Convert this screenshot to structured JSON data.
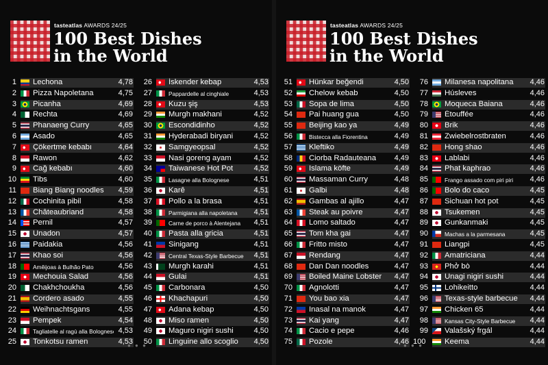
{
  "panels": [
    {
      "brand_a": "tasteatlas",
      "brand_b": "AWARDS 24/25",
      "title_line1": "100 Best Dishes",
      "title_line2": "in the World",
      "columns": [
        [
          {
            "rank": "1",
            "name": "Lechona",
            "score": "4,78",
            "flag": "co"
          },
          {
            "rank": "2",
            "name": "Pizza Napoletana",
            "score": "4,75",
            "flag": "it"
          },
          {
            "rank": "3",
            "name": "Picanha",
            "score": "4,69",
            "flag": "br"
          },
          {
            "rank": "4",
            "name": "Rechta",
            "score": "4,69",
            "flag": "dz"
          },
          {
            "rank": "5",
            "name": "Phanaeng Curry",
            "score": "4,65",
            "flag": "th"
          },
          {
            "rank": "6",
            "name": "Asado",
            "score": "4,65",
            "flag": "ar"
          },
          {
            "rank": "7",
            "name": "Çökertme kebabı",
            "score": "4,64",
            "flag": "tr"
          },
          {
            "rank": "8",
            "name": "Rawon",
            "score": "4,62",
            "flag": "id"
          },
          {
            "rank": "9",
            "name": "Cağ kebabı",
            "score": "4,60",
            "flag": "tr"
          },
          {
            "rank": "10",
            "name": "Tibs",
            "score": "4,60",
            "flag": "et"
          },
          {
            "rank": "11",
            "name": "Biang Biang noodles",
            "score": "4,59",
            "flag": "cn"
          },
          {
            "rank": "12",
            "name": "Cochinita pibil",
            "score": "4,58",
            "flag": "mx"
          },
          {
            "rank": "13",
            "name": "Châteaubriand",
            "score": "4,58",
            "flag": "fr"
          },
          {
            "rank": "14",
            "name": "Pernil",
            "score": "4,57",
            "flag": "pr"
          },
          {
            "rank": "15",
            "name": "Unadon",
            "score": "4,57",
            "flag": "jp"
          },
          {
            "rank": "16",
            "name": "Paidakia",
            "score": "4,56",
            "flag": "gr"
          },
          {
            "rank": "17",
            "name": "Khao soi",
            "score": "4,56",
            "flag": "th"
          },
          {
            "rank": "18",
            "name": "Amêijoas à Bulhão Pato",
            "score": "4,56",
            "flag": "pt",
            "small": true
          },
          {
            "rank": "19",
            "name": "Mechouia Salad",
            "score": "4,56",
            "flag": "tn"
          },
          {
            "rank": "20",
            "name": "Chakhchoukha",
            "score": "4,56",
            "flag": "dz"
          },
          {
            "rank": "21",
            "name": "Cordero asado",
            "score": "4,55",
            "flag": "es"
          },
          {
            "rank": "22",
            "name": "Weihnachtsgans",
            "score": "4,55",
            "flag": "de"
          },
          {
            "rank": "23",
            "name": "Pempek",
            "score": "4,54",
            "flag": "id"
          },
          {
            "rank": "24",
            "name": "Tagliatelle al ragù alla Bolognese",
            "score": "4,53",
            "flag": "it",
            "small": true
          },
          {
            "rank": "25",
            "name": "Tonkotsu ramen",
            "score": "4,53",
            "flag": "jp"
          }
        ],
        [
          {
            "rank": "26",
            "name": "İskender kebap",
            "score": "4,53",
            "flag": "tr"
          },
          {
            "rank": "27",
            "name": "Pappardelle al cinghiale",
            "score": "4,53",
            "flag": "it",
            "small": true
          },
          {
            "rank": "28",
            "name": "Kuzu şiş",
            "score": "4,53",
            "flag": "tr"
          },
          {
            "rank": "29",
            "name": "Murgh makhani",
            "score": "4,52",
            "flag": "in"
          },
          {
            "rank": "30",
            "name": "Escondidinho",
            "score": "4,52",
            "flag": "br"
          },
          {
            "rank": "31",
            "name": "Hyderabadi biryani",
            "score": "4,52",
            "flag": "in"
          },
          {
            "rank": "32",
            "name": "Samgyeopsal",
            "score": "4,52",
            "flag": "kr"
          },
          {
            "rank": "33",
            "name": "Nasi goreng ayam",
            "score": "4,52",
            "flag": "id"
          },
          {
            "rank": "34",
            "name": "Taiwanese Hot Pot",
            "score": "4,52",
            "flag": "tw"
          },
          {
            "rank": "35",
            "name": "Lasagne alla Bolognese",
            "score": "4,51",
            "flag": "it",
            "small": true
          },
          {
            "rank": "36",
            "name": "Karê",
            "score": "4,51",
            "flag": "jp"
          },
          {
            "rank": "37",
            "name": "Pollo a la brasa",
            "score": "4,51",
            "flag": "pe"
          },
          {
            "rank": "38",
            "name": "Parmigiana alla napoletana",
            "score": "4,51",
            "flag": "it",
            "small": true
          },
          {
            "rank": "39",
            "name": "Carne de porco à Alentejana",
            "score": "4,51",
            "flag": "pt",
            "small": true
          },
          {
            "rank": "40",
            "name": "Pasta alla gricia",
            "score": "4,51",
            "flag": "it"
          },
          {
            "rank": "41",
            "name": "Sinigang",
            "score": "4,51",
            "flag": "ph"
          },
          {
            "rank": "42",
            "name": "Central Texas-Style Barbecue",
            "score": "4,51",
            "flag": "us",
            "small": true
          },
          {
            "rank": "43",
            "name": "Murgh karahi",
            "score": "4,51",
            "flag": "pk"
          },
          {
            "rank": "44",
            "name": "Gulai",
            "score": "4,51",
            "flag": "id"
          },
          {
            "rank": "45",
            "name": "Carbonara",
            "score": "4,50",
            "flag": "it"
          },
          {
            "rank": "46",
            "name": "Khachapuri",
            "score": "4,50",
            "flag": "ge"
          },
          {
            "rank": "47",
            "name": "Adana kebap",
            "score": "4,50",
            "flag": "tr"
          },
          {
            "rank": "48",
            "name": "Miso ramen",
            "score": "4,50",
            "flag": "jp"
          },
          {
            "rank": "49",
            "name": "Maguro nigiri sushi",
            "score": "4,50",
            "flag": "jp"
          },
          {
            "rank": "50",
            "name": "Linguine allo scoglio",
            "score": "4,50",
            "flag": "it"
          }
        ]
      ]
    },
    {
      "brand_a": "tasteatlas",
      "brand_b": "AWARDS 24/25",
      "title_line1": "100 Best Dishes",
      "title_line2": "in the World",
      "columns": [
        [
          {
            "rank": "51",
            "name": "Hünkar beğendi",
            "score": "4,50",
            "flag": "tr"
          },
          {
            "rank": "52",
            "name": "Chelow kebab",
            "score": "4,50",
            "flag": "ir"
          },
          {
            "rank": "53",
            "name": "Sopa de lima",
            "score": "4,50",
            "flag": "mx"
          },
          {
            "rank": "54",
            "name": "Pai huang gua",
            "score": "4,50",
            "flag": "cn"
          },
          {
            "rank": "55",
            "name": "Beijing kao ya",
            "score": "4,49",
            "flag": "cn"
          },
          {
            "rank": "56",
            "name": "Bistecca alla Fiorentina",
            "score": "4,49",
            "flag": "it",
            "small": true
          },
          {
            "rank": "57",
            "name": "Kleftiko",
            "score": "4,49",
            "flag": "gr"
          },
          {
            "rank": "58",
            "name": "Ciorba Radauteana",
            "score": "4,49",
            "flag": "ro"
          },
          {
            "rank": "59",
            "name": "Islama köfte",
            "score": "4,49",
            "flag": "tr"
          },
          {
            "rank": "60",
            "name": "Massaman Curry",
            "score": "4,48",
            "flag": "th"
          },
          {
            "rank": "61",
            "name": "Galbi",
            "score": "4,48",
            "flag": "kr"
          },
          {
            "rank": "62",
            "name": "Gambas al ajillo",
            "score": "4,47",
            "flag": "es"
          },
          {
            "rank": "63",
            "name": "Steak au poivre",
            "score": "4,47",
            "flag": "fr"
          },
          {
            "rank": "64",
            "name": "Lomo saltado",
            "score": "4,47",
            "flag": "pe"
          },
          {
            "rank": "65",
            "name": "Tom kha gai",
            "score": "4,47",
            "flag": "th"
          },
          {
            "rank": "66",
            "name": "Fritto misto",
            "score": "4,47",
            "flag": "it"
          },
          {
            "rank": "67",
            "name": "Rendang",
            "score": "4,47",
            "flag": "id"
          },
          {
            "rank": "68",
            "name": "Dan Dan noodles",
            "score": "4,47",
            "flag": "cn"
          },
          {
            "rank": "69",
            "name": "Boiled Maine Lobster",
            "score": "4,47",
            "flag": "us"
          },
          {
            "rank": "70",
            "name": "Agnolotti",
            "score": "4,47",
            "flag": "it"
          },
          {
            "rank": "71",
            "name": "You bao xia",
            "score": "4,47",
            "flag": "cn"
          },
          {
            "rank": "72",
            "name": "Inasal na manok",
            "score": "4,47",
            "flag": "ph"
          },
          {
            "rank": "73",
            "name": "Kai yang",
            "score": "4,47",
            "flag": "th"
          },
          {
            "rank": "74",
            "name": "Cacio e pepe",
            "score": "4,46",
            "flag": "it"
          },
          {
            "rank": "75",
            "name": "Pozole",
            "score": "4,46",
            "flag": "mx"
          }
        ],
        [
          {
            "rank": "76",
            "name": "Milanesa napolitana",
            "score": "4,46",
            "flag": "ar"
          },
          {
            "rank": "77",
            "name": "Húsleves",
            "score": "4,46",
            "flag": "hu"
          },
          {
            "rank": "78",
            "name": "Moqueca Baiana",
            "score": "4,46",
            "flag": "br"
          },
          {
            "rank": "79",
            "name": "Étouffée",
            "score": "4,46",
            "flag": "us"
          },
          {
            "rank": "80",
            "name": "Brik",
            "score": "4,46",
            "flag": "tn"
          },
          {
            "rank": "81",
            "name": "Zwiebelrostbraten",
            "score": "4,46",
            "flag": "at"
          },
          {
            "rank": "82",
            "name": "Hong shao",
            "score": "4,46",
            "flag": "cn"
          },
          {
            "rank": "83",
            "name": "Lablabi",
            "score": "4,46",
            "flag": "tn"
          },
          {
            "rank": "84",
            "name": "Phat kaphrao",
            "score": "4,46",
            "flag": "th"
          },
          {
            "rank": "85",
            "name": "Frango assado com piri piri",
            "score": "4,46",
            "flag": "pt",
            "small": true
          },
          {
            "rank": "86",
            "name": "Bolo do caco",
            "score": "4,45",
            "flag": "pt"
          },
          {
            "rank": "87",
            "name": "Sichuan hot pot",
            "score": "4,45",
            "flag": "cn"
          },
          {
            "rank": "88",
            "name": "Tsukemen",
            "score": "4,45",
            "flag": "jp"
          },
          {
            "rank": "89",
            "name": "Gunkanmaki",
            "score": "4,45",
            "flag": "jp"
          },
          {
            "rank": "90",
            "name": "Machas a la parmesana",
            "score": "4,45",
            "flag": "cl",
            "small": true
          },
          {
            "rank": "91",
            "name": "Liangpi",
            "score": "4,45",
            "flag": "cn"
          },
          {
            "rank": "92",
            "name": "Amatriciana",
            "score": "4,44",
            "flag": "it"
          },
          {
            "rank": "93",
            "name": "Phở bò",
            "score": "4,44",
            "flag": "vn"
          },
          {
            "rank": "94",
            "name": "Unagi nigiri sushi",
            "score": "4,44",
            "flag": "jp"
          },
          {
            "rank": "95",
            "name": "Lohikeitto",
            "score": "4,44",
            "flag": "fi"
          },
          {
            "rank": "96",
            "name": "Texas-style barbecue",
            "score": "4,44",
            "flag": "us"
          },
          {
            "rank": "97",
            "name": "Chicken 65",
            "score": "4,44",
            "flag": "in"
          },
          {
            "rank": "98",
            "name": "Kansas City-Style Barbecue",
            "score": "4,44",
            "flag": "us",
            "small": true
          },
          {
            "rank": "99",
            "name": "Valašský frgál",
            "score": "4,44",
            "flag": "cz"
          },
          {
            "rank": "100",
            "name": "Keema",
            "score": "4,44",
            "flag": "in"
          }
        ]
      ]
    }
  ],
  "flag_styles": {
    "co": "linear-gradient(#fcd116 0 50%, #003893 50% 75%, #ce1126 75%)",
    "it": "linear-gradient(90deg,#009246 0 33%,#fff 33% 66%,#ce2b37 66%)",
    "br": "radial-gradient(circle at 50% 50%, #002776 0 22%, #fedf00 23% 48%, #009c3b 49%)",
    "dz": "linear-gradient(90deg,#006233 0 50%,#fff 50%)",
    "th": "linear-gradient(#a51931 0 17%,#fff 17% 33%,#2d2a4a 33% 67%,#fff 67% 83%,#a51931 83%)",
    "ar": "linear-gradient(#74acdf 0 33%,#fff 33% 66%,#74acdf 66%)",
    "tr": "radial-gradient(circle at 40% 50%, #fff 0 20%, #e30a17 21%)",
    "id": "linear-gradient(#ce1126 0 50%,#fff 50%)",
    "et": "linear-gradient(#078930 0 33%,#fcdd09 33% 66%,#da121a 66%)",
    "cn": "linear-gradient(#de2910,#de2910)",
    "mx": "linear-gradient(90deg,#006847 0 33%,#fff 33% 66%,#ce1126 66%)",
    "fr": "linear-gradient(90deg,#0055a4 0 33%,#fff 33% 66%,#ef4135 66%)",
    "pr": "linear-gradient(90deg,#0050f0 0 30%,transparent 30%), repeating-linear-gradient(#ed0000 0 20%,#fff 20% 40%)",
    "jp": "radial-gradient(circle, #bc002d 0 28%, #fff 30%)",
    "gr": "repeating-linear-gradient(#0d5eaf 0 11%,#fff 11% 22%)",
    "pt": "linear-gradient(90deg,#006600 0 40%,#ff0000 40%)",
    "tn": "radial-gradient(circle, #fff 0 25%, #e70013 27%)",
    "es": "linear-gradient(#aa151b 0 25%,#f1bf00 25% 75%,#aa151b 75%)",
    "de": "linear-gradient(#000 0 33%,#dd0000 33% 66%,#ffce00 66%)",
    "kr": "radial-gradient(circle, #cd2e3a 0 20%, #fff 22%)",
    "tw": "linear-gradient(90deg,#000095 0 50%,transparent 50%), linear-gradient(#000095 0 50%,#fe0000 50%)",
    "pe": "linear-gradient(90deg,#d91023 0 33%,#fff 33% 66%,#d91023 66%)",
    "ph": "linear-gradient(#0038a8 0 50%,#ce1126 50%)",
    "us": "linear-gradient(90deg,#3c3b6e 0 40%,transparent 40%), repeating-linear-gradient(#b22234 0 15%,#fff 15% 30%)",
    "pk": "linear-gradient(90deg,#fff 0 25%,#01411c 25%)",
    "ge": "linear-gradient(90deg,transparent 43%,#ff0000 43% 57%,transparent 57%), linear-gradient(#fff 40%,#ff0000 40% 60%,#fff 60%)",
    "ir": "linear-gradient(#239f40 0 33%,#fff 33% 66%,#da0000 66%)",
    "ro": "linear-gradient(90deg,#002b7f 0 33%,#fcd116 33% 66%,#ce1126 66%)",
    "hu": "linear-gradient(#ce2939 0 33%,#fff 33% 66%,#477050 66%)",
    "at": "linear-gradient(#ed2939 0 33%,#fff 33% 66%,#ed2939 66%)",
    "cl": "linear-gradient(90deg,#0039a6 0 35%,transparent 35%), linear-gradient(#fff 0 50%,#d52b1e 50%)",
    "vn": "radial-gradient(circle, #ffff00 0 22%, #da251d 24%)",
    "fi": "linear-gradient(90deg,transparent 30%,#003580 30% 45%,transparent 45%), linear-gradient(#fff 40%,#003580 40% 60%,#fff 60%)",
    "in": "linear-gradient(#ff9933 0 33%,#fff 33% 66%,#138808 66%)",
    "cz": "linear-gradient(135deg,#11457e 0 35%,transparent 35%), linear-gradient(#fff 0 50%,#d7141a 50%)"
  }
}
